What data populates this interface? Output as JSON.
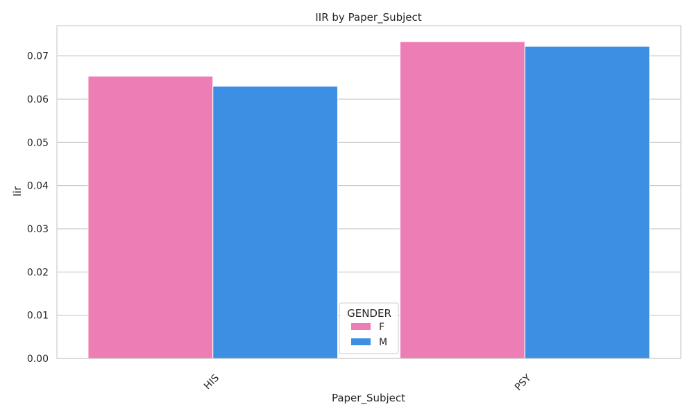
{
  "chart_data": {
    "type": "bar",
    "title": "IIR by Paper_Subject",
    "xlabel": "Paper_Subject",
    "ylabel": "Iir",
    "categories": [
      "HIS",
      "PSY"
    ],
    "series": [
      {
        "name": "F",
        "color": "#ED7EB5",
        "values": [
          0.0653,
          0.0733
        ]
      },
      {
        "name": "M",
        "color": "#3C8FE3",
        "values": [
          0.063,
          0.0722
        ]
      }
    ],
    "ylim": [
      0,
      0.077
    ],
    "yticks": [
      "0.00",
      "0.01",
      "0.02",
      "0.03",
      "0.04",
      "0.05",
      "0.06",
      "0.07"
    ],
    "grid": true,
    "legend": {
      "title": "GENDER",
      "placement": "bottom-center"
    }
  }
}
